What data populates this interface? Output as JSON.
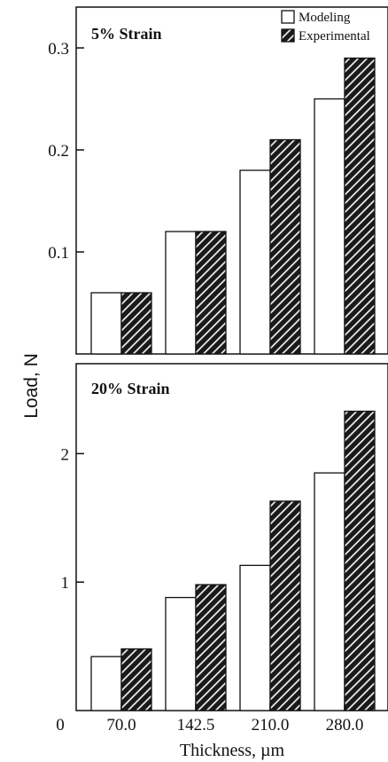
{
  "chart_data": {
    "ylabel": "Load,  N",
    "xlabel": "Thickness,  µm",
    "categories": [
      "70.0",
      "142.5",
      "210.0",
      "280.0"
    ],
    "legend": {
      "placement": "top-right",
      "entries": [
        "Modeling",
        "Experimental"
      ]
    },
    "colors": {
      "modeling": "#ffffff",
      "experimental": "#1a1a1a",
      "hatch": "#ffffff",
      "edge": "#111111"
    },
    "zero_label": "0",
    "panels": [
      {
        "title": "5%  Strain",
        "type": "bar",
        "ylim": [
          0,
          0.34
        ],
        "yticks": [
          {
            "value": 0.1,
            "label": "0.1"
          },
          {
            "value": 0.2,
            "label": "0.2"
          },
          {
            "value": 0.3,
            "label": "0.3"
          }
        ],
        "series": [
          {
            "name": "Modeling",
            "values": [
              0.06,
              0.12,
              0.18,
              0.25
            ]
          },
          {
            "name": "Experimental",
            "values": [
              0.06,
              0.12,
              0.21,
              0.29
            ]
          }
        ]
      },
      {
        "title": "20% Strain",
        "type": "bar",
        "ylim": [
          0,
          2.7
        ],
        "yticks": [
          {
            "value": 1,
            "label": "1"
          },
          {
            "value": 2,
            "label": "2"
          }
        ],
        "series": [
          {
            "name": "Modeling",
            "values": [
              0.42,
              0.88,
              1.13,
              1.85
            ]
          },
          {
            "name": "Experimental",
            "values": [
              0.48,
              0.98,
              1.63,
              2.33
            ]
          }
        ]
      }
    ]
  }
}
